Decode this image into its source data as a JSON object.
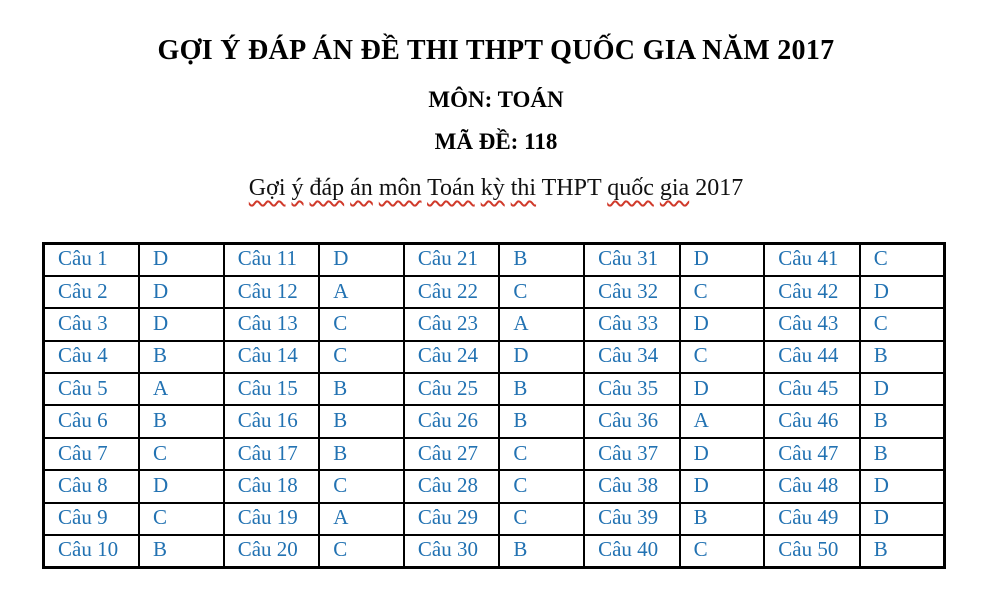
{
  "header": {
    "title": "GỢI Ý ĐÁP ÁN ĐỀ THI THPT QUỐC GIA NĂM 2017",
    "subject_line": "MÔN: TOÁN",
    "code_line": "MÃ ĐỀ: 118",
    "subtitle_words": [
      {
        "text": "Gợi",
        "misspelled": true
      },
      {
        "text": "ý",
        "misspelled": true
      },
      {
        "text": "đáp",
        "misspelled": true
      },
      {
        "text": "án",
        "misspelled": true
      },
      {
        "text": "môn",
        "misspelled": true
      },
      {
        "text": "Toán",
        "misspelled": true
      },
      {
        "text": "kỳ",
        "misspelled": true
      },
      {
        "text": "thi",
        "misspelled": true
      },
      {
        "text": "THPT",
        "misspelled": false
      },
      {
        "text": "quốc",
        "misspelled": true
      },
      {
        "text": "gia",
        "misspelled": true
      },
      {
        "text": "2017",
        "misspelled": false
      }
    ]
  },
  "answer_table": {
    "rows": 10,
    "column_groups": 5,
    "answers": [
      {
        "label": "Câu 1",
        "answer": "D"
      },
      {
        "label": "Câu 2",
        "answer": "D"
      },
      {
        "label": "Câu 3",
        "answer": "D"
      },
      {
        "label": "Câu 4",
        "answer": "B"
      },
      {
        "label": "Câu 5",
        "answer": "A"
      },
      {
        "label": "Câu 6",
        "answer": "B"
      },
      {
        "label": "Câu 7",
        "answer": "C"
      },
      {
        "label": "Câu 8",
        "answer": "D"
      },
      {
        "label": "Câu 9",
        "answer": "C"
      },
      {
        "label": "Câu 10",
        "answer": "B"
      },
      {
        "label": "Câu 11",
        "answer": "D"
      },
      {
        "label": "Câu 12",
        "answer": "A"
      },
      {
        "label": "Câu 13",
        "answer": "C"
      },
      {
        "label": "Câu 14",
        "answer": "C"
      },
      {
        "label": "Câu 15",
        "answer": "B"
      },
      {
        "label": "Câu 16",
        "answer": "B"
      },
      {
        "label": "Câu 17",
        "answer": "B"
      },
      {
        "label": "Câu 18",
        "answer": "C"
      },
      {
        "label": "Câu 19",
        "answer": "A"
      },
      {
        "label": "Câu 20",
        "answer": "C"
      },
      {
        "label": "Câu 21",
        "answer": "B"
      },
      {
        "label": "Câu 22",
        "answer": "C"
      },
      {
        "label": "Câu 23",
        "answer": "A"
      },
      {
        "label": "Câu 24",
        "answer": "D"
      },
      {
        "label": "Câu 25",
        "answer": "B"
      },
      {
        "label": "Câu 26",
        "answer": "B"
      },
      {
        "label": "Câu 27",
        "answer": "C"
      },
      {
        "label": "Câu 28",
        "answer": "C"
      },
      {
        "label": "Câu 29",
        "answer": "C"
      },
      {
        "label": "Câu 30",
        "answer": "B"
      },
      {
        "label": "Câu 31",
        "answer": "D"
      },
      {
        "label": "Câu 32",
        "answer": "C"
      },
      {
        "label": "Câu 33",
        "answer": "D"
      },
      {
        "label": "Câu 34",
        "answer": "C"
      },
      {
        "label": "Câu 35",
        "answer": "D"
      },
      {
        "label": "Câu 36",
        "answer": "A"
      },
      {
        "label": "Câu 37",
        "answer": "D"
      },
      {
        "label": "Câu 38",
        "answer": "D"
      },
      {
        "label": "Câu 39",
        "answer": "B"
      },
      {
        "label": "Câu 40",
        "answer": "C"
      },
      {
        "label": "Câu 41",
        "answer": "C"
      },
      {
        "label": "Câu 42",
        "answer": "D"
      },
      {
        "label": "Câu 43",
        "answer": "C"
      },
      {
        "label": "Câu 44",
        "answer": "B"
      },
      {
        "label": "Câu 45",
        "answer": "D"
      },
      {
        "label": "Câu 46",
        "answer": "B"
      },
      {
        "label": "Câu 47",
        "answer": "B"
      },
      {
        "label": "Câu 48",
        "answer": "D"
      },
      {
        "label": "Câu 49",
        "answer": "D"
      },
      {
        "label": "Câu 50",
        "answer": "B"
      }
    ]
  },
  "colors": {
    "table_text": "#2272b2",
    "table_border": "#000000",
    "squiggle": "#d03a2b"
  }
}
